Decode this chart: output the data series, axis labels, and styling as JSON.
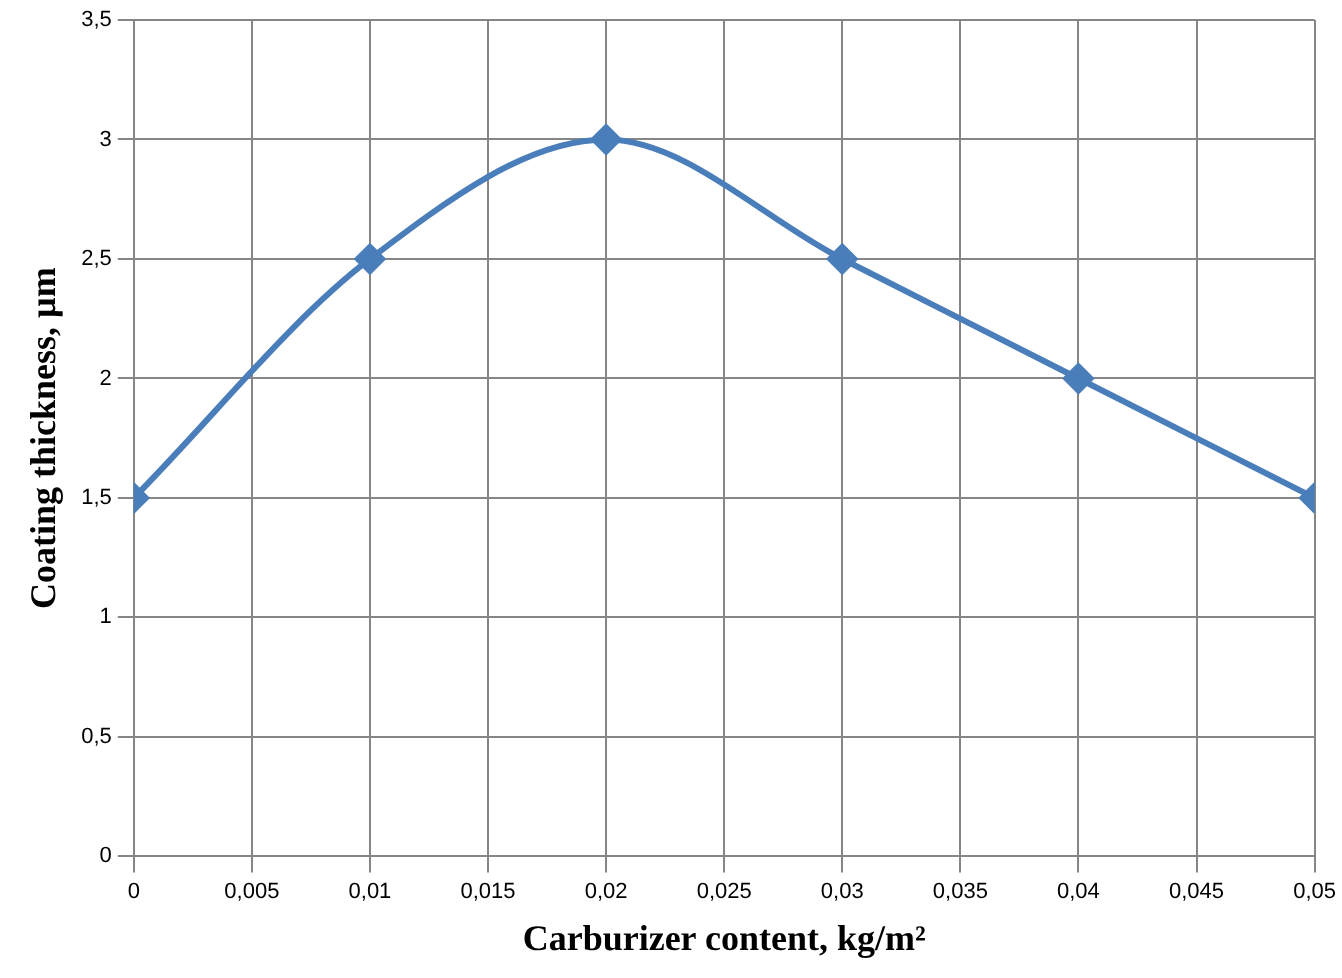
{
  "chart_data": {
    "type": "line",
    "xlabel": "Carburizer content, kg/m²",
    "ylabel": "Coating thickness, µm",
    "x": [
      0,
      0.01,
      0.02,
      0.03,
      0.04,
      0.05
    ],
    "series": [
      {
        "color": "#4a7ebb",
        "values": [
          1.5,
          2.5,
          3,
          2.5,
          2,
          1.5
        ]
      }
    ],
    "xlim": [
      0,
      0.05
    ],
    "xticks": [
      {
        "value": 0,
        "label": "0"
      },
      {
        "value": 0.005,
        "label": "0,005"
      },
      {
        "value": 0.01,
        "label": "0,01"
      },
      {
        "value": 0.015,
        "label": "0,015"
      },
      {
        "value": 0.02,
        "label": "0,02"
      },
      {
        "value": 0.025,
        "label": "0,025"
      },
      {
        "value": 0.03,
        "label": "0,03"
      },
      {
        "value": 0.035,
        "label": "0,035"
      },
      {
        "value": 0.04,
        "label": "0,04"
      },
      {
        "value": 0.045,
        "label": "0,045"
      },
      {
        "value": 0.05,
        "label": "0,05"
      }
    ],
    "ylim": [
      0,
      3.5
    ],
    "yticks": [
      0,
      {
        "value": 0.5,
        "label": "0,5"
      },
      1,
      {
        "value": 1.5,
        "label": "1,5"
      },
      2,
      {
        "value": 2.5,
        "label": "2,5"
      },
      3,
      {
        "value": 3.5,
        "label": "3,5"
      }
    ],
    "grid": true,
    "legend": false,
    "marker": "diamond",
    "line_style": "solid"
  }
}
